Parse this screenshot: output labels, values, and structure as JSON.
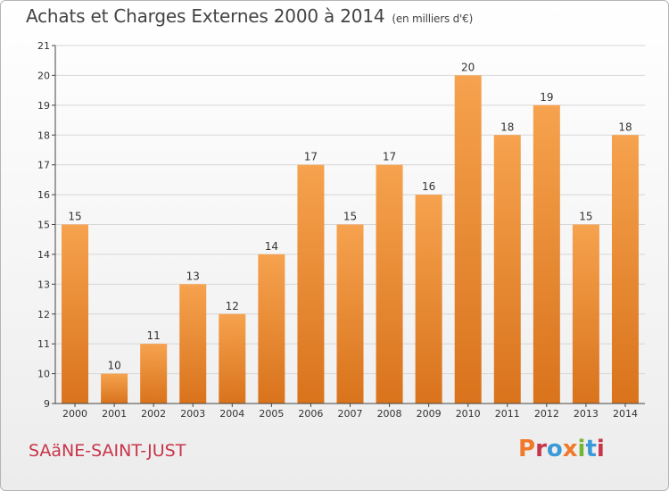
{
  "header": {
    "title": "Achats et Charges Externes 2000 à 2014",
    "unit": "(en milliers d'€)"
  },
  "footer": {
    "commune": "SAäNE-SAINT-JUST",
    "logo": "Proxiti",
    "logo_colors": [
      "#f0792a",
      "#c8344a",
      "#3a9ad9",
      "#f0792a",
      "#73b633",
      "#3a9ad9",
      "#c8344a"
    ]
  },
  "colors": {
    "bar_top": "#f6a24e",
    "bar_bottom": "#d9731c",
    "grid": "#d6d6d6",
    "axis": "#444444",
    "text": "#333333"
  },
  "chart_data": {
    "type": "bar",
    "title": "Achats et Charges Externes 2000 à 2014",
    "subtitle": "(en milliers d'€)",
    "xlabel": "",
    "ylabel": "",
    "categories": [
      "2000",
      "2001",
      "2002",
      "2003",
      "2004",
      "2005",
      "2006",
      "2007",
      "2008",
      "2009",
      "2010",
      "2011",
      "2012",
      "2013",
      "2014"
    ],
    "values": [
      15,
      10,
      11,
      13,
      12,
      14,
      17,
      15,
      17,
      16,
      20,
      18,
      19,
      15,
      18
    ],
    "ylim": [
      9,
      21
    ],
    "yticks": [
      9,
      10,
      11,
      12,
      13,
      14,
      15,
      16,
      17,
      18,
      19,
      20,
      21
    ],
    "grid": true,
    "legend": "none",
    "data_labels": true
  }
}
